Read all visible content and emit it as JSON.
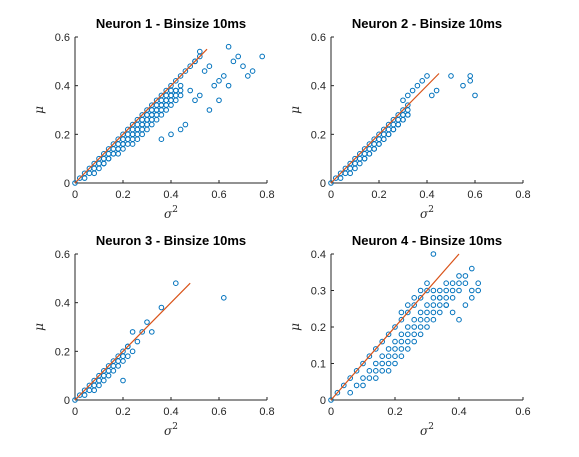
{
  "figure": {
    "colors": {
      "points": "#0072BD",
      "fit_line": "#D95319",
      "axes": "#262626"
    }
  },
  "chart_data": [
    {
      "type": "scatter",
      "title": "Neuron 1 - Binsize 10ms",
      "xlabel": "σ",
      "xlabel_superscript": "2",
      "ylabel": "μ",
      "xlim": [
        0,
        0.8
      ],
      "ylim": [
        0,
        0.6
      ],
      "xticks": [
        "0",
        "0.2",
        "0.4",
        "0.6",
        "0.8"
      ],
      "yticks": [
        "0",
        "0.2",
        "0.4",
        "0.6"
      ],
      "grid": false,
      "series": [
        {
          "type": "scatter",
          "x": [
            0,
            0.02,
            0.04,
            0.06,
            0.08,
            0.1,
            0.12,
            0.14,
            0.16,
            0.18,
            0.2,
            0.22,
            0.24,
            0.26,
            0.28,
            0.3,
            0.32,
            0.34,
            0.36,
            0.38,
            0.4,
            0.42,
            0.44,
            0.46,
            0.48,
            0.5,
            0.52,
            0.04,
            0.06,
            0.08,
            0.1,
            0.12,
            0.14,
            0.16,
            0.18,
            0.2,
            0.22,
            0.24,
            0.26,
            0.28,
            0.3,
            0.32,
            0.34,
            0.36,
            0.38,
            0.4,
            0.08,
            0.1,
            0.12,
            0.14,
            0.16,
            0.18,
            0.2,
            0.22,
            0.24,
            0.26,
            0.28,
            0.3,
            0.32,
            0.34,
            0.36,
            0.38,
            0.4,
            0.42,
            0.12,
            0.14,
            0.16,
            0.18,
            0.2,
            0.22,
            0.24,
            0.26,
            0.28,
            0.3,
            0.32,
            0.34,
            0.36,
            0.38,
            0.4,
            0.42,
            0.44,
            0.18,
            0.2,
            0.22,
            0.24,
            0.26,
            0.28,
            0.3,
            0.32,
            0.34,
            0.36,
            0.38,
            0.4,
            0.42,
            0.44,
            0.24,
            0.26,
            0.28,
            0.3,
            0.32,
            0.34,
            0.36,
            0.38,
            0.4,
            0.42,
            0.44,
            0.5,
            0.52,
            0.54,
            0.56,
            0.58,
            0.6,
            0.62,
            0.64,
            0.66,
            0.68,
            0.7,
            0.72,
            0.74,
            0.78,
            0.48,
            0.5,
            0.52,
            0.56,
            0.6,
            0.64,
            0.36,
            0.4,
            0.44,
            0.46
          ],
          "y": [
            0,
            0.02,
            0.04,
            0.06,
            0.08,
            0.1,
            0.12,
            0.14,
            0.16,
            0.18,
            0.2,
            0.22,
            0.24,
            0.26,
            0.28,
            0.3,
            0.32,
            0.34,
            0.36,
            0.38,
            0.4,
            0.42,
            0.44,
            0.46,
            0.48,
            0.5,
            0.52,
            0.02,
            0.04,
            0.06,
            0.08,
            0.1,
            0.12,
            0.14,
            0.16,
            0.18,
            0.2,
            0.22,
            0.24,
            0.26,
            0.28,
            0.3,
            0.32,
            0.34,
            0.36,
            0.38,
            0.04,
            0.06,
            0.08,
            0.1,
            0.12,
            0.14,
            0.16,
            0.18,
            0.2,
            0.22,
            0.24,
            0.26,
            0.28,
            0.3,
            0.32,
            0.34,
            0.36,
            0.38,
            0.08,
            0.1,
            0.12,
            0.14,
            0.16,
            0.18,
            0.2,
            0.22,
            0.24,
            0.26,
            0.28,
            0.3,
            0.32,
            0.34,
            0.36,
            0.38,
            0.4,
            0.12,
            0.14,
            0.16,
            0.18,
            0.2,
            0.22,
            0.24,
            0.26,
            0.28,
            0.3,
            0.32,
            0.34,
            0.36,
            0.38,
            0.16,
            0.18,
            0.2,
            0.22,
            0.24,
            0.26,
            0.28,
            0.3,
            0.32,
            0.34,
            0.36,
            0.5,
            0.54,
            0.46,
            0.48,
            0.4,
            0.42,
            0.44,
            0.56,
            0.5,
            0.52,
            0.48,
            0.44,
            0.46,
            0.52,
            0.38,
            0.34,
            0.36,
            0.3,
            0.34,
            0.4,
            0.18,
            0.2,
            0.22,
            0.24
          ]
        },
        {
          "type": "line",
          "x": [
            0,
            0.55
          ],
          "y": [
            0,
            0.55
          ]
        }
      ]
    },
    {
      "type": "scatter",
      "title": "Neuron 2 - Binsize 10ms",
      "xlabel": "σ",
      "xlabel_superscript": "2",
      "ylabel": "μ",
      "xlim": [
        0,
        0.8
      ],
      "ylim": [
        0,
        0.6
      ],
      "xticks": [
        "0",
        "0.2",
        "0.4",
        "0.6",
        "0.8"
      ],
      "yticks": [
        "0",
        "0.2",
        "0.4",
        "0.6"
      ],
      "grid": false,
      "series": [
        {
          "type": "scatter",
          "x": [
            0,
            0.02,
            0.04,
            0.06,
            0.08,
            0.1,
            0.12,
            0.14,
            0.16,
            0.18,
            0.2,
            0.22,
            0.24,
            0.26,
            0.28,
            0.3,
            0.32,
            0.04,
            0.06,
            0.08,
            0.1,
            0.12,
            0.14,
            0.16,
            0.18,
            0.2,
            0.22,
            0.24,
            0.26,
            0.28,
            0.3,
            0.32,
            0.08,
            0.1,
            0.12,
            0.14,
            0.16,
            0.18,
            0.2,
            0.22,
            0.24,
            0.26,
            0.28,
            0.3,
            0.32,
            0.14,
            0.16,
            0.18,
            0.2,
            0.22,
            0.24,
            0.26,
            0.28,
            0.3,
            0.32,
            0.3,
            0.32,
            0.34,
            0.36,
            0.38,
            0.4,
            0.42,
            0.44,
            0.5,
            0.55,
            0.58,
            0.58,
            0.6
          ],
          "y": [
            0,
            0.02,
            0.04,
            0.06,
            0.08,
            0.1,
            0.12,
            0.14,
            0.16,
            0.18,
            0.2,
            0.22,
            0.24,
            0.26,
            0.28,
            0.3,
            0.32,
            0.02,
            0.04,
            0.06,
            0.08,
            0.1,
            0.12,
            0.14,
            0.16,
            0.18,
            0.2,
            0.22,
            0.24,
            0.26,
            0.28,
            0.3,
            0.04,
            0.06,
            0.08,
            0.1,
            0.12,
            0.14,
            0.16,
            0.18,
            0.2,
            0.22,
            0.24,
            0.26,
            0.28,
            0.1,
            0.12,
            0.14,
            0.16,
            0.18,
            0.2,
            0.22,
            0.24,
            0.26,
            0.28,
            0.34,
            0.36,
            0.38,
            0.4,
            0.42,
            0.44,
            0.36,
            0.38,
            0.44,
            0.4,
            0.42,
            0.44,
            0.36
          ]
        },
        {
          "type": "line",
          "x": [
            0,
            0.45
          ],
          "y": [
            0,
            0.45
          ]
        }
      ]
    },
    {
      "type": "scatter",
      "title": "Neuron 3 - Binsize 10ms",
      "xlabel": "σ",
      "xlabel_superscript": "2",
      "ylabel": "μ",
      "xlim": [
        0,
        0.8
      ],
      "ylim": [
        0,
        0.6
      ],
      "xticks": [
        "0",
        "0.2",
        "0.4",
        "0.6",
        "0.8"
      ],
      "yticks": [
        "0",
        "0.2",
        "0.4",
        "0.6"
      ],
      "grid": false,
      "series": [
        {
          "type": "scatter",
          "x": [
            0,
            0.02,
            0.04,
            0.06,
            0.08,
            0.1,
            0.12,
            0.14,
            0.16,
            0.18,
            0.2,
            0.22,
            0.04,
            0.06,
            0.08,
            0.1,
            0.12,
            0.14,
            0.16,
            0.18,
            0.2,
            0.22,
            0.24,
            0.08,
            0.1,
            0.12,
            0.14,
            0.16,
            0.18,
            0.2,
            0.22,
            0.24,
            0.26,
            0.28,
            0.3,
            0.32,
            0.2,
            0.36,
            0.42,
            0.62
          ],
          "y": [
            0,
            0.02,
            0.04,
            0.06,
            0.08,
            0.1,
            0.12,
            0.14,
            0.16,
            0.18,
            0.2,
            0.22,
            0.02,
            0.04,
            0.06,
            0.08,
            0.1,
            0.12,
            0.14,
            0.16,
            0.18,
            0.22,
            0.28,
            0.04,
            0.06,
            0.08,
            0.1,
            0.12,
            0.14,
            0.16,
            0.18,
            0.2,
            0.24,
            0.28,
            0.32,
            0.28,
            0.08,
            0.38,
            0.48,
            0.42
          ]
        },
        {
          "type": "line",
          "x": [
            0,
            0.48
          ],
          "y": [
            0,
            0.48
          ]
        }
      ]
    },
    {
      "type": "scatter",
      "title": "Neuron 4 - Binsize 10ms",
      "xlabel": "σ",
      "xlabel_superscript": "2",
      "ylabel": "μ",
      "xlim": [
        0,
        0.6
      ],
      "ylim": [
        0,
        0.4
      ],
      "xticks": [
        "0",
        "0.2",
        "0.4",
        "0.6"
      ],
      "yticks": [
        "0",
        "0.1",
        "0.2",
        "0.3",
        "0.4"
      ],
      "grid": false,
      "series": [
        {
          "type": "scatter",
          "x": [
            0,
            0.02,
            0.04,
            0.06,
            0.08,
            0.1,
            0.12,
            0.14,
            0.16,
            0.18,
            0.2,
            0.22,
            0.24,
            0.26,
            0.28,
            0.3,
            0.32,
            0.06,
            0.08,
            0.1,
            0.12,
            0.14,
            0.16,
            0.18,
            0.2,
            0.22,
            0.24,
            0.26,
            0.28,
            0.3,
            0.32,
            0.34,
            0.36,
            0.1,
            0.12,
            0.14,
            0.16,
            0.18,
            0.2,
            0.22,
            0.24,
            0.26,
            0.28,
            0.3,
            0.32,
            0.34,
            0.36,
            0.38,
            0.4,
            0.14,
            0.16,
            0.18,
            0.2,
            0.22,
            0.24,
            0.26,
            0.28,
            0.3,
            0.32,
            0.34,
            0.36,
            0.38,
            0.4,
            0.42,
            0.44,
            0.18,
            0.2,
            0.22,
            0.24,
            0.26,
            0.28,
            0.3,
            0.32,
            0.34,
            0.36,
            0.38,
            0.4,
            0.42,
            0.44,
            0.46,
            0.22,
            0.24,
            0.26,
            0.28,
            0.3,
            0.32,
            0.34,
            0.36,
            0.38,
            0.4,
            0.42,
            0.44,
            0.46
          ],
          "y": [
            0,
            0.02,
            0.04,
            0.06,
            0.08,
            0.1,
            0.12,
            0.14,
            0.16,
            0.18,
            0.2,
            0.22,
            0.24,
            0.26,
            0.28,
            0.3,
            0.4,
            0.02,
            0.04,
            0.06,
            0.08,
            0.1,
            0.12,
            0.14,
            0.16,
            0.18,
            0.2,
            0.22,
            0.24,
            0.26,
            0.28,
            0.3,
            0.32,
            0.04,
            0.06,
            0.08,
            0.1,
            0.12,
            0.14,
            0.16,
            0.18,
            0.2,
            0.22,
            0.24,
            0.26,
            0.28,
            0.3,
            0.32,
            0.34,
            0.06,
            0.08,
            0.1,
            0.12,
            0.14,
            0.16,
            0.18,
            0.2,
            0.22,
            0.24,
            0.26,
            0.28,
            0.3,
            0.32,
            0.34,
            0.36,
            0.08,
            0.1,
            0.12,
            0.14,
            0.16,
            0.18,
            0.2,
            0.22,
            0.24,
            0.26,
            0.28,
            0.3,
            0.32,
            0.3,
            0.32,
            0.24,
            0.26,
            0.28,
            0.3,
            0.32,
            0.3,
            0.28,
            0.26,
            0.24,
            0.22,
            0.26,
            0.28,
            0.3
          ]
        },
        {
          "type": "line",
          "x": [
            0,
            0.4
          ],
          "y": [
            0,
            0.4
          ]
        }
      ]
    }
  ]
}
